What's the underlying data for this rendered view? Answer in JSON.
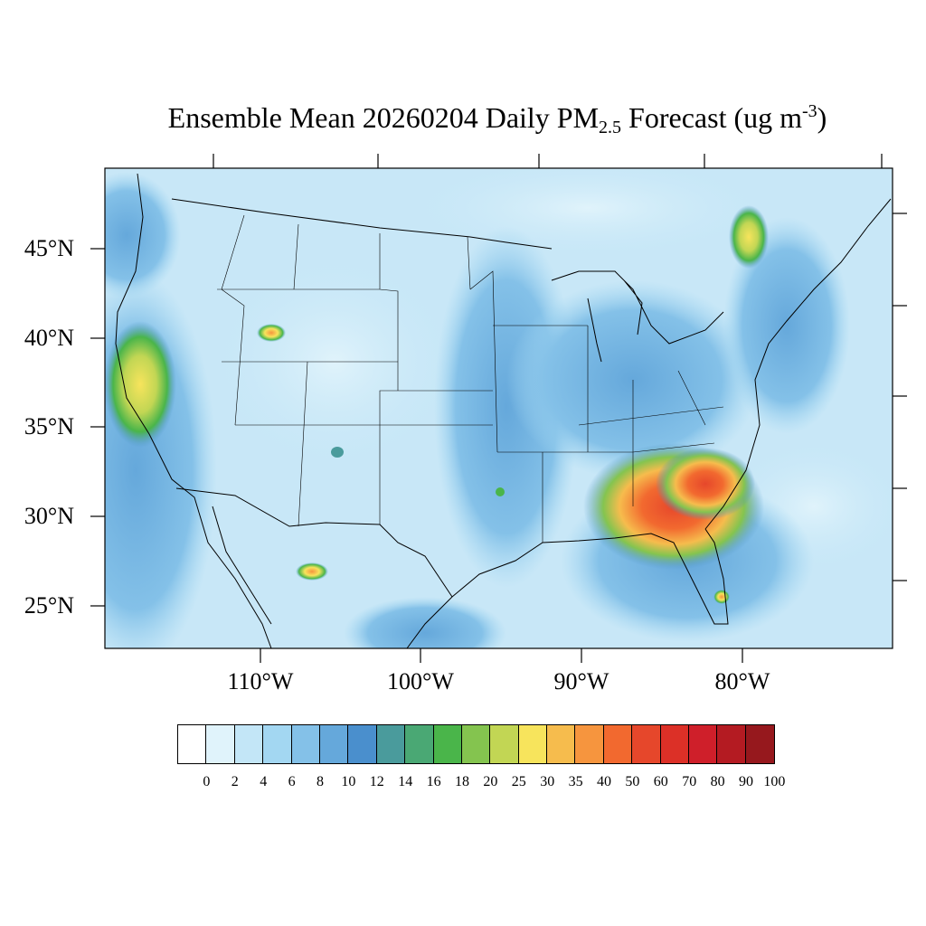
{
  "title": {
    "main": "Ensemble Mean 20260204 Daily PM",
    "sub": "2.5",
    "mid": " Forecast (ug m",
    "sup": "-3",
    "end": ")"
  },
  "lat_labels": [
    "45°N",
    "40°N",
    "35°N",
    "30°N",
    "25°N"
  ],
  "lon_labels": [
    "110°W",
    "100°W",
    "90°W",
    "80°W"
  ],
  "colorbar": {
    "labels": [
      "0",
      "2",
      "4",
      "6",
      "8",
      "10",
      "12",
      "14",
      "16",
      "18",
      "20",
      "25",
      "30",
      "35",
      "40",
      "50",
      "60",
      "70",
      "80",
      "90",
      "100"
    ],
    "colors": [
      "#ffffff",
      "#e0f3fb",
      "#c3e6f7",
      "#a3d7f2",
      "#84c1e8",
      "#65a8db",
      "#4a8fcd",
      "#4a9b9c",
      "#4aa874",
      "#4ab54a",
      "#84c44f",
      "#c2d654",
      "#f7e45c",
      "#f6bc4d",
      "#f6953e",
      "#f2692f",
      "#e6472b",
      "#dc3027",
      "#cf1f2a",
      "#b41b22",
      "#96181d"
    ]
  },
  "map": {
    "background_color": "#c8e7f7",
    "hotspot_colors": [
      "#f2692f",
      "#e6472b",
      "#f6953e",
      "#f6bc4d",
      "#f7e45c",
      "#84c44f",
      "#4ab54a"
    ]
  }
}
